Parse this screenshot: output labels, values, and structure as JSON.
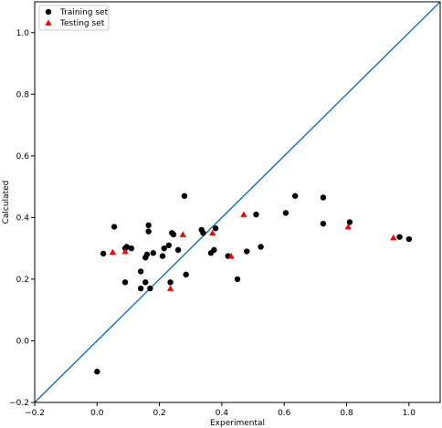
{
  "chart_data": {
    "type": "scatter",
    "title": "",
    "xlabel": "Experimental",
    "ylabel": "Calculated",
    "xlim": [
      -0.2,
      1.1
    ],
    "ylim": [
      -0.2,
      1.1
    ],
    "xticks": [
      -0.2,
      0.0,
      0.2,
      0.4,
      0.6,
      0.8,
      1.0
    ],
    "yticks": [
      -0.2,
      0.0,
      0.2,
      0.4,
      0.6,
      0.8,
      1.0
    ],
    "xtick_labels": [
      "−0.2",
      "0.0",
      "0.2",
      "0.4",
      "0.6",
      "0.8",
      "1.0"
    ],
    "ytick_labels": [
      "−0.2",
      "0.0",
      "0.2",
      "0.4",
      "0.6",
      "0.8",
      "1.0"
    ],
    "grid": false,
    "legend_position": "top-left",
    "reference_line": {
      "from": [
        -0.2,
        -0.2
      ],
      "to": [
        1.1,
        1.1
      ],
      "color": "#1f77b4"
    },
    "series": [
      {
        "name": "Training set",
        "marker": "circle",
        "color": "#000000",
        "points": [
          [
            0.0,
            -0.1
          ],
          [
            0.02,
            0.283
          ],
          [
            0.055,
            0.37
          ],
          [
            0.09,
            0.3
          ],
          [
            0.095,
            0.305
          ],
          [
            0.09,
            0.19
          ],
          [
            0.11,
            0.3
          ],
          [
            0.14,
            0.17
          ],
          [
            0.14,
            0.225
          ],
          [
            0.155,
            0.19
          ],
          [
            0.155,
            0.27
          ],
          [
            0.16,
            0.28
          ],
          [
            0.165,
            0.355
          ],
          [
            0.165,
            0.375
          ],
          [
            0.17,
            0.17
          ],
          [
            0.18,
            0.285
          ],
          [
            0.21,
            0.275
          ],
          [
            0.215,
            0.3
          ],
          [
            0.23,
            0.31
          ],
          [
            0.235,
            0.19
          ],
          [
            0.24,
            0.35
          ],
          [
            0.245,
            0.345
          ],
          [
            0.26,
            0.295
          ],
          [
            0.28,
            0.47
          ],
          [
            0.285,
            0.215
          ],
          [
            0.335,
            0.36
          ],
          [
            0.34,
            0.35
          ],
          [
            0.365,
            0.285
          ],
          [
            0.38,
            0.365
          ],
          [
            0.375,
            0.295
          ],
          [
            0.42,
            0.275
          ],
          [
            0.45,
            0.2
          ],
          [
            0.48,
            0.29
          ],
          [
            0.51,
            0.41
          ],
          [
            0.525,
            0.305
          ],
          [
            0.605,
            0.415
          ],
          [
            0.635,
            0.47
          ],
          [
            0.725,
            0.465
          ],
          [
            0.725,
            0.38
          ],
          [
            0.81,
            0.385
          ],
          [
            0.97,
            0.337
          ],
          [
            1.0,
            0.33
          ]
        ]
      },
      {
        "name": "Testing set",
        "marker": "triangle",
        "color": "#ff0000",
        "points": [
          [
            0.05,
            0.288
          ],
          [
            0.09,
            0.29
          ],
          [
            0.235,
            0.17
          ],
          [
            0.275,
            0.345
          ],
          [
            0.37,
            0.35
          ],
          [
            0.43,
            0.275
          ],
          [
            0.47,
            0.41
          ],
          [
            0.805,
            0.37
          ],
          [
            0.95,
            0.335
          ]
        ]
      }
    ]
  }
}
